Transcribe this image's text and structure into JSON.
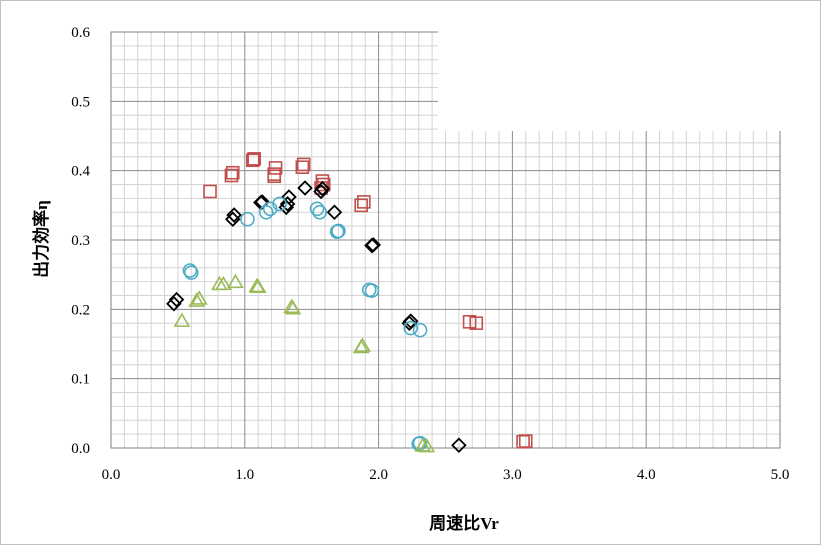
{
  "chart_data": {
    "type": "scatter",
    "title": "",
    "xlabel": "周速比Vr",
    "ylabel": "出力効率η",
    "xlim": [
      0.0,
      5.0
    ],
    "ylim": [
      0.0,
      0.6
    ],
    "x_ticks": [
      "0.0",
      "1.0",
      "2.0",
      "3.0",
      "4.0",
      "5.0"
    ],
    "y_ticks": [
      "0.0",
      "0.1",
      "0.2",
      "0.3",
      "0.4",
      "0.5",
      "0.6"
    ],
    "grid": true,
    "minor_grid": true,
    "legend": "none",
    "series": [
      {
        "marker": "square",
        "color": "#c0504d",
        "points": [
          [
            0.74,
            0.37
          ],
          [
            0.9,
            0.393
          ],
          [
            0.91,
            0.397
          ],
          [
            1.06,
            0.415
          ],
          [
            1.07,
            0.417
          ],
          [
            1.22,
            0.395
          ],
          [
            1.23,
            0.404
          ],
          [
            1.22,
            0.392
          ],
          [
            1.43,
            0.405
          ],
          [
            1.44,
            0.409
          ],
          [
            1.58,
            0.385
          ],
          [
            1.59,
            0.38
          ],
          [
            1.57,
            0.375
          ],
          [
            1.87,
            0.35
          ],
          [
            1.89,
            0.355
          ],
          [
            2.68,
            0.182
          ],
          [
            2.73,
            0.18
          ],
          [
            3.08,
            0.009
          ],
          [
            3.1,
            0.01
          ]
        ]
      },
      {
        "marker": "diamond",
        "color": "#000000",
        "points": [
          [
            0.47,
            0.208
          ],
          [
            0.49,
            0.214
          ],
          [
            0.91,
            0.33
          ],
          [
            0.92,
            0.336
          ],
          [
            1.12,
            0.354
          ],
          [
            1.13,
            0.355
          ],
          [
            1.31,
            0.347
          ],
          [
            1.32,
            0.352
          ],
          [
            1.33,
            0.362
          ],
          [
            1.45,
            0.375
          ],
          [
            1.57,
            0.37
          ],
          [
            1.58,
            0.374
          ],
          [
            1.67,
            0.34
          ],
          [
            1.95,
            0.292
          ],
          [
            1.96,
            0.293
          ],
          [
            2.23,
            0.18
          ],
          [
            2.24,
            0.183
          ],
          [
            2.6,
            0.004
          ]
        ]
      },
      {
        "marker": "circle",
        "color": "#4bacc6",
        "points": [
          [
            0.59,
            0.256
          ],
          [
            0.6,
            0.253
          ],
          [
            1.02,
            0.33
          ],
          [
            1.16,
            0.34
          ],
          [
            1.19,
            0.345
          ],
          [
            1.26,
            0.352
          ],
          [
            1.54,
            0.345
          ],
          [
            1.56,
            0.34
          ],
          [
            1.69,
            0.312
          ],
          [
            1.7,
            0.313
          ],
          [
            1.93,
            0.228
          ],
          [
            1.95,
            0.227
          ],
          [
            2.24,
            0.173
          ],
          [
            2.31,
            0.17
          ],
          [
            2.3,
            0.006
          ],
          [
            2.31,
            0.007
          ]
        ]
      },
      {
        "marker": "triangle",
        "color": "#9bbb59",
        "points": [
          [
            0.53,
            0.183
          ],
          [
            0.64,
            0.212
          ],
          [
            0.66,
            0.215
          ],
          [
            0.81,
            0.236
          ],
          [
            0.84,
            0.236
          ],
          [
            0.93,
            0.239
          ],
          [
            1.09,
            0.233
          ],
          [
            1.1,
            0.232
          ],
          [
            1.35,
            0.203
          ],
          [
            1.36,
            0.201
          ],
          [
            1.87,
            0.145
          ],
          [
            1.88,
            0.147
          ],
          [
            2.33,
            0.003
          ],
          [
            2.36,
            0.002
          ]
        ]
      }
    ]
  }
}
